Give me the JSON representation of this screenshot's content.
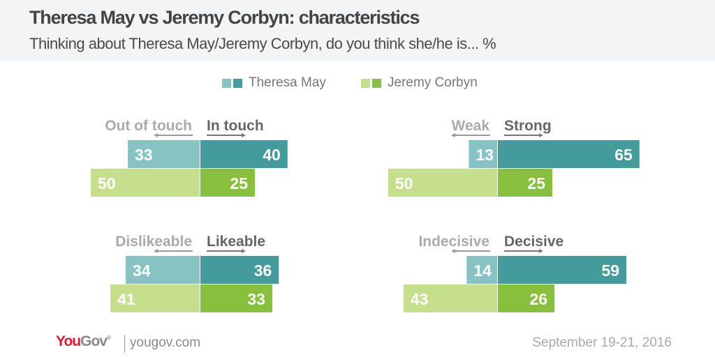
{
  "header": {
    "title": "Theresa May vs Jeremy Corbyn: characteristics",
    "subtitle": "Thinking about Theresa May/Jeremy Corbyn, do you think she/he is... %"
  },
  "legend": [
    {
      "name": "Theresa May",
      "color_negative": "#88c3c4",
      "color_positive": "#449b9c"
    },
    {
      "name": "Jeremy Corbyn",
      "color_negative": "#c6df8c",
      "color_positive": "#86c03d"
    }
  ],
  "footer": {
    "logo_part1": "You",
    "logo_part2": "Gov",
    "logo_reg": "®",
    "url": "yougov.com",
    "date": "September 19-21, 2016"
  },
  "colors": {
    "label_negative": "#aaaaaa",
    "label_positive": "#666666",
    "arrow": "#999999",
    "bar_text": "#ffffff"
  },
  "chart_data": [
    {
      "type": "bar",
      "orientation": "diverging-horizontal",
      "negative_label": "Out of touch",
      "positive_label": "In touch",
      "series": [
        {
          "name": "Theresa May",
          "negative": 33,
          "positive": 40
        },
        {
          "name": "Jeremy Corbyn",
          "negative": 50,
          "positive": 25
        }
      ]
    },
    {
      "type": "bar",
      "orientation": "diverging-horizontal",
      "negative_label": "Weak",
      "positive_label": "Strong",
      "series": [
        {
          "name": "Theresa May",
          "negative": 13,
          "positive": 65
        },
        {
          "name": "Jeremy Corbyn",
          "negative": 50,
          "positive": 25
        }
      ]
    },
    {
      "type": "bar",
      "orientation": "diverging-horizontal",
      "negative_label": "Dislikeable",
      "positive_label": "Likeable",
      "series": [
        {
          "name": "Theresa May",
          "negative": 34,
          "positive": 36
        },
        {
          "name": "Jeremy Corbyn",
          "negative": 41,
          "positive": 33
        }
      ]
    },
    {
      "type": "bar",
      "orientation": "diverging-horizontal",
      "negative_label": "Indecisive",
      "positive_label": "Decisive",
      "series": [
        {
          "name": "Theresa May",
          "negative": 14,
          "positive": 59
        },
        {
          "name": "Jeremy Corbyn",
          "negative": 43,
          "positive": 26
        }
      ]
    }
  ]
}
